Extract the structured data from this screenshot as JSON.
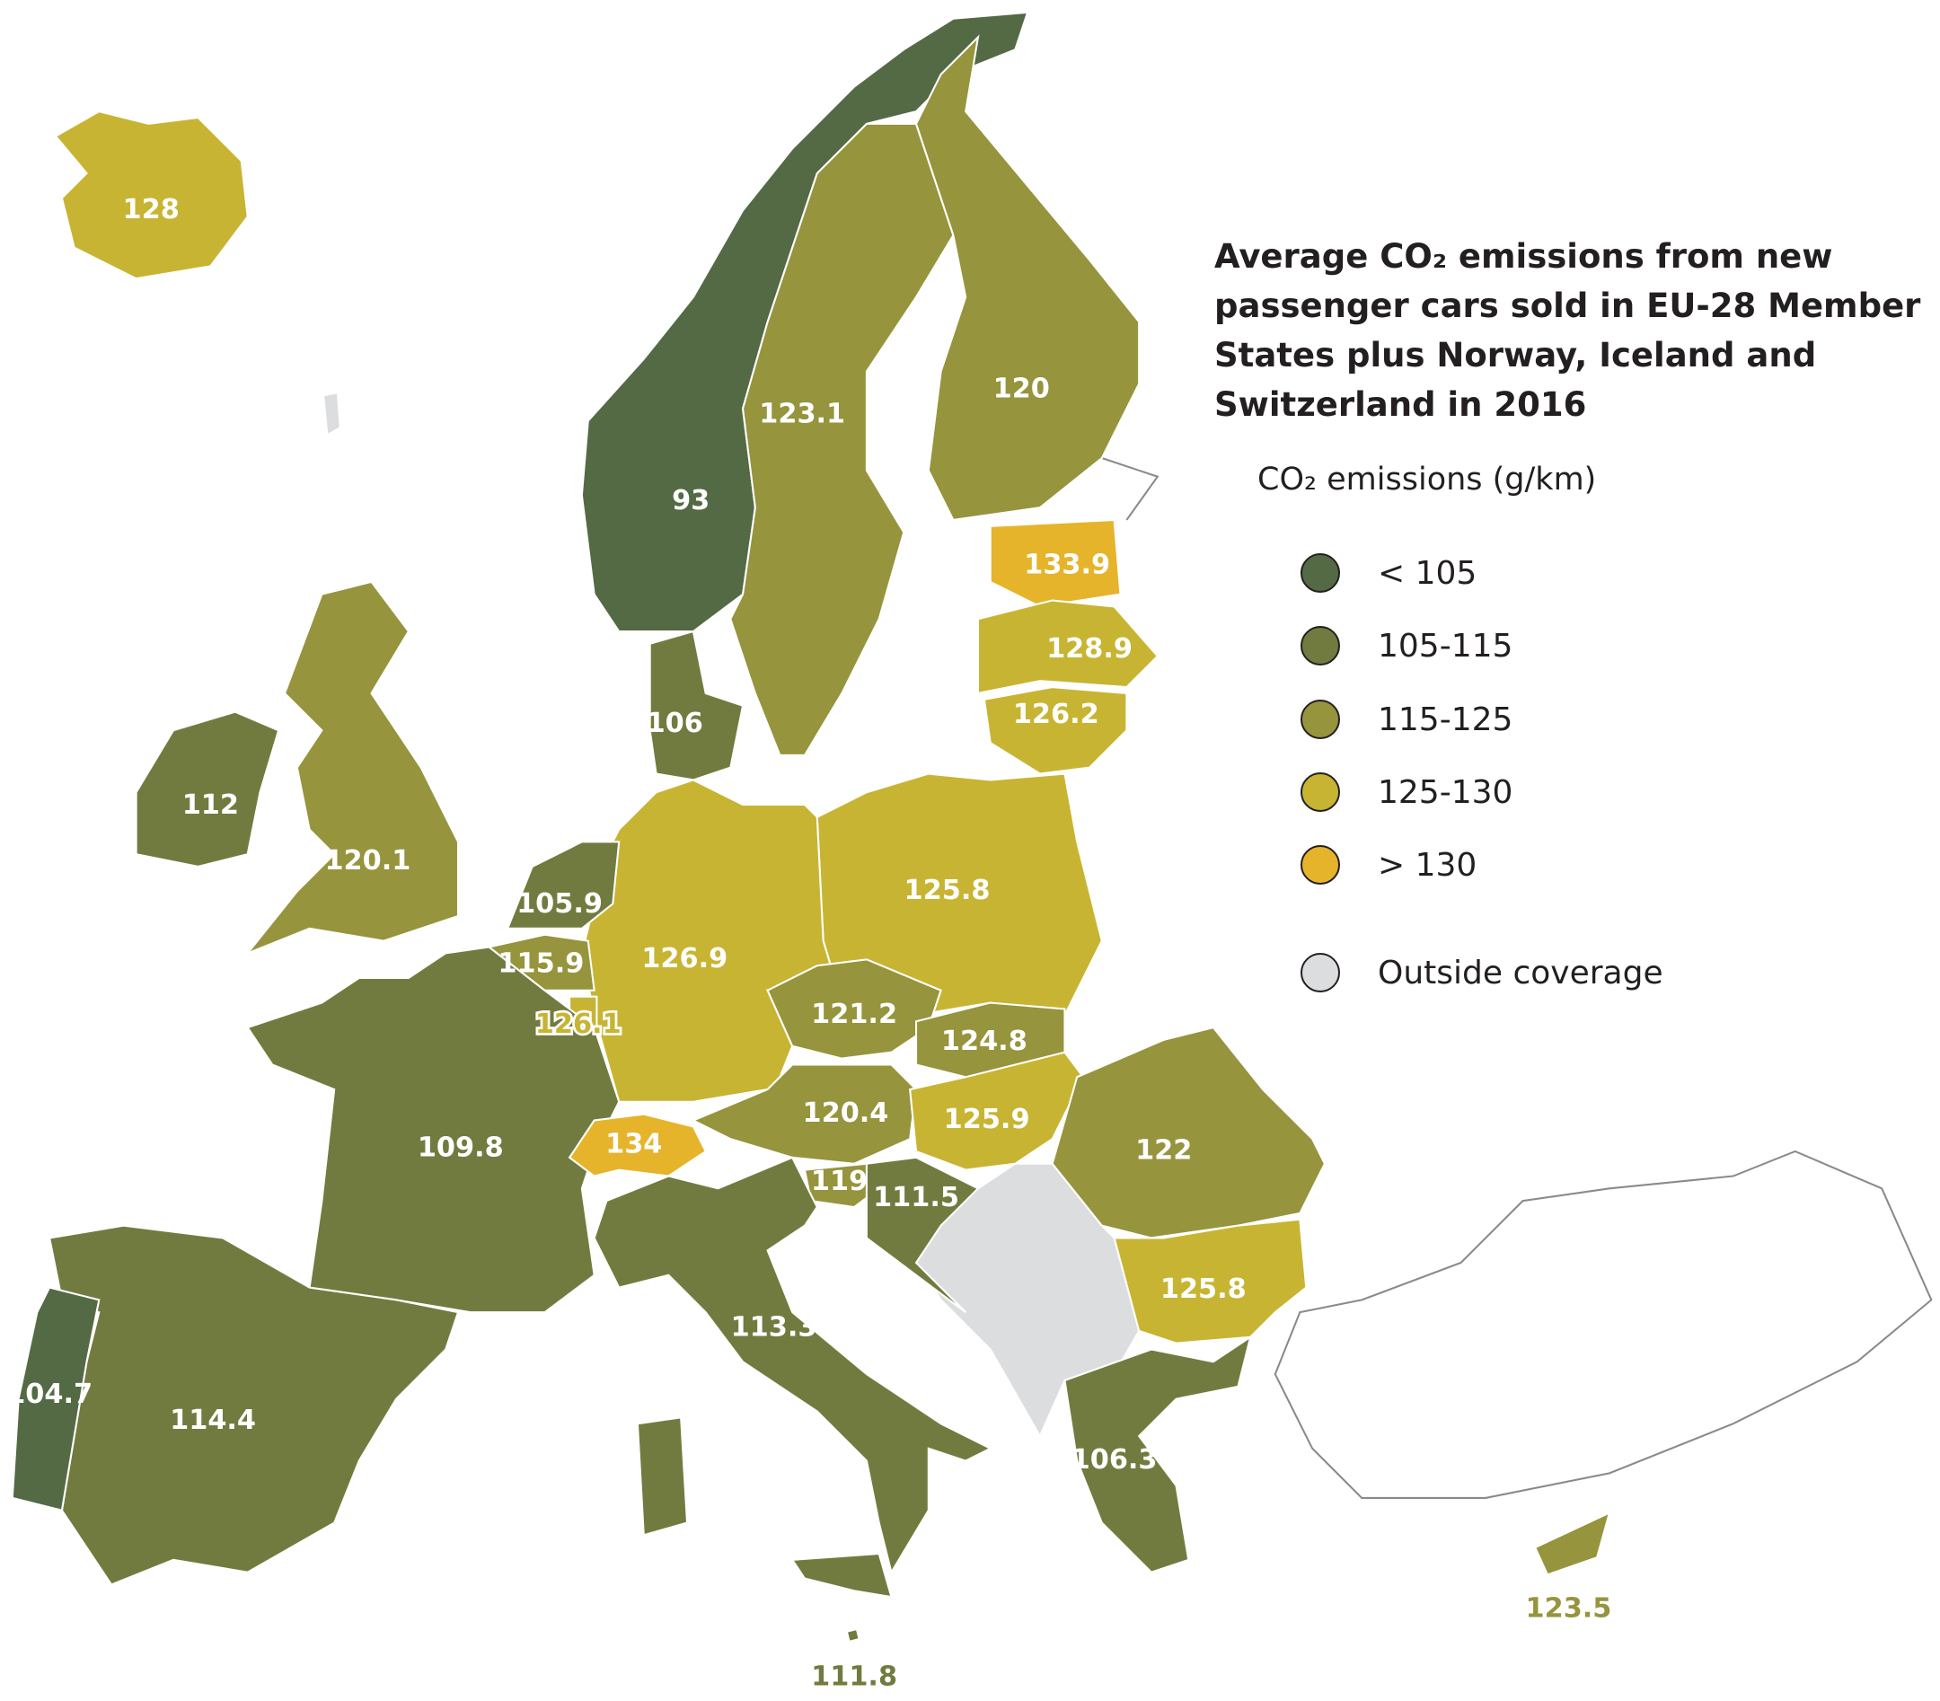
{
  "title": "Average CO₂ emissions from new passenger cars sold in EU-28 Member States plus Norway, Iceland and Switzerland in 2016",
  "legend": {
    "title": "CO₂ emissions (g/km)",
    "items": [
      {
        "label": "< 105",
        "color": "#536a45"
      },
      {
        "label": "105-115",
        "color": "#727b3f"
      },
      {
        "label": "115-125",
        "color": "#96943d"
      },
      {
        "label": "125-130",
        "color": "#c8b433"
      },
      {
        "label": "> 130",
        "color": "#e6b42b"
      },
      {
        "label": "Outside coverage",
        "color": "#dcdddf"
      }
    ]
  },
  "regions": [
    {
      "value": 128,
      "color": "#c8b433"
    },
    {
      "value": 93,
      "color": "#536a45"
    },
    {
      "value": 123.1,
      "color": "#96943d"
    },
    {
      "value": 120,
      "color": "#96943d"
    },
    {
      "value": 133.9,
      "color": "#e6b42b"
    },
    {
      "value": 128.9,
      "color": "#c8b433"
    },
    {
      "value": 126.2,
      "color": "#c8b433"
    },
    {
      "value": 125.8,
      "color": "#c8b433"
    },
    {
      "value": 126.9,
      "color": "#c8b433"
    },
    {
      "value": 106,
      "color": "#727b3f"
    },
    {
      "value": 105.9,
      "color": "#727b3f"
    },
    {
      "value": 115.9,
      "color": "#96943d"
    },
    {
      "value": 126.1,
      "color": "#c8b433"
    },
    {
      "value": 109.8,
      "color": "#727b3f"
    },
    {
      "value": 134,
      "color": "#e6b42b"
    },
    {
      "value": 120.4,
      "color": "#96943d"
    },
    {
      "value": 121.2,
      "color": "#96943d"
    },
    {
      "value": 124.8,
      "color": "#96943d"
    },
    {
      "value": 125.9,
      "color": "#c8b433"
    },
    {
      "value": 119,
      "color": "#96943d"
    },
    {
      "value": 111.5,
      "color": "#727b3f"
    },
    {
      "value": 122,
      "color": "#96943d"
    },
    {
      "value": 125.8,
      "color": "#c8b433"
    },
    {
      "value": 106.3,
      "color": "#727b3f"
    },
    {
      "value": 113.3,
      "color": "#727b3f"
    },
    {
      "value": 111.8,
      "color": "#727b3f"
    },
    {
      "value": 123.5,
      "color": "#96943d"
    },
    {
      "value": 114.4,
      "color": "#727b3f"
    },
    {
      "value": 104.7,
      "color": "#536a45"
    },
    {
      "value": 120.1,
      "color": "#96943d"
    },
    {
      "value": 112,
      "color": "#727b3f"
    }
  ]
}
